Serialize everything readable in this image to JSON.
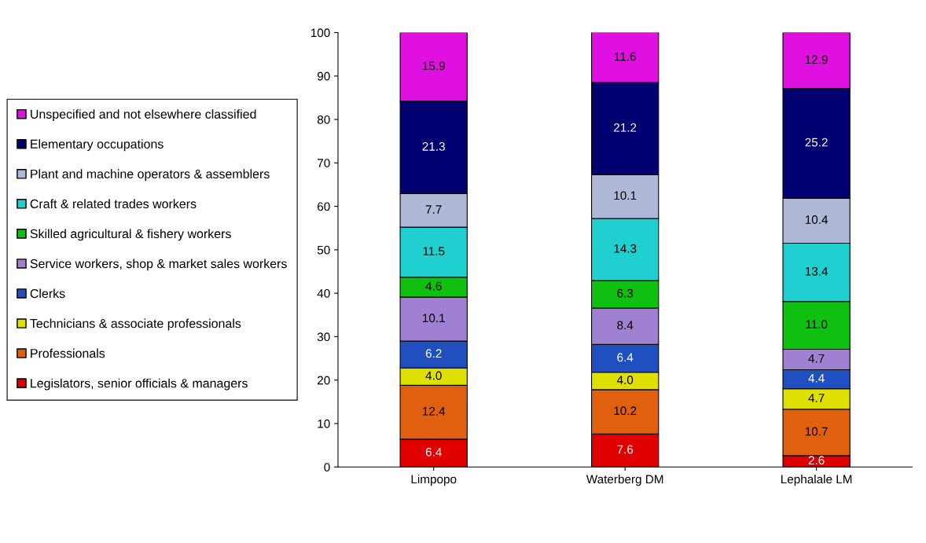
{
  "chart_data": {
    "type": "bar",
    "stacked": true,
    "categories": [
      "Limpopo",
      "Waterberg DM",
      "Lephalale LM"
    ],
    "ylim": [
      0,
      100
    ],
    "yticks": [
      0,
      10,
      20,
      30,
      40,
      50,
      60,
      70,
      80,
      90,
      100
    ],
    "grid": false,
    "legend": "left",
    "series": [
      {
        "name": "Legislators, senior officials & managers",
        "color": "#e00000",
        "values": [
          6.4,
          7.6,
          2.6
        ],
        "value_labels": [
          "6.4",
          "7.6",
          "2.6"
        ]
      },
      {
        "name": "Professionals",
        "color": "#e06010",
        "values": [
          12.4,
          10.2,
          10.7
        ],
        "value_labels": [
          "12.4",
          "10.2",
          "10.7"
        ]
      },
      {
        "name": "Technicians & associate professionals",
        "color": "#e0e000",
        "values": [
          4.0,
          4.0,
          4.7
        ],
        "value_labels": [
          "4.0",
          "4.0",
          "4.7"
        ]
      },
      {
        "name": "Clerks",
        "color": "#2050c0",
        "values": [
          6.2,
          6.4,
          4.4
        ],
        "value_labels": [
          "6.2",
          "6.4",
          "4.4"
        ]
      },
      {
        "name": "Service workers, shop & market sales workers",
        "color": "#a080d0",
        "values": [
          10.1,
          8.4,
          4.7
        ],
        "value_labels": [
          "10.1",
          "8.4",
          "4.7"
        ]
      },
      {
        "name": "Skilled agricultural & fishery workers",
        "color": "#10c010",
        "values": [
          4.6,
          6.3,
          11.0
        ],
        "value_labels": [
          "4.6",
          "6.3",
          "11.0"
        ]
      },
      {
        "name": "Craft & related trades workers",
        "color": "#20d0d0",
        "values": [
          11.5,
          14.3,
          13.4
        ],
        "value_labels": [
          "11.5",
          "14.3",
          "13.4"
        ]
      },
      {
        "name": "Plant and machine operators & assemblers",
        "color": "#b0b8d8",
        "values": [
          7.7,
          10.1,
          10.4
        ],
        "value_labels": [
          "7.7",
          "10.1",
          "10.4"
        ]
      },
      {
        "name": "Elementary occupations",
        "color": "#000070",
        "values": [
          21.3,
          21.2,
          25.2
        ],
        "value_labels": [
          "21.3",
          "21.2",
          "25.2"
        ]
      },
      {
        "name": "Unspecified and not elsewhere classified",
        "color": "#e010e0",
        "values": [
          15.9,
          11.6,
          12.9
        ],
        "value_labels": [
          "15.9",
          "11.6",
          "12.9"
        ]
      }
    ]
  }
}
